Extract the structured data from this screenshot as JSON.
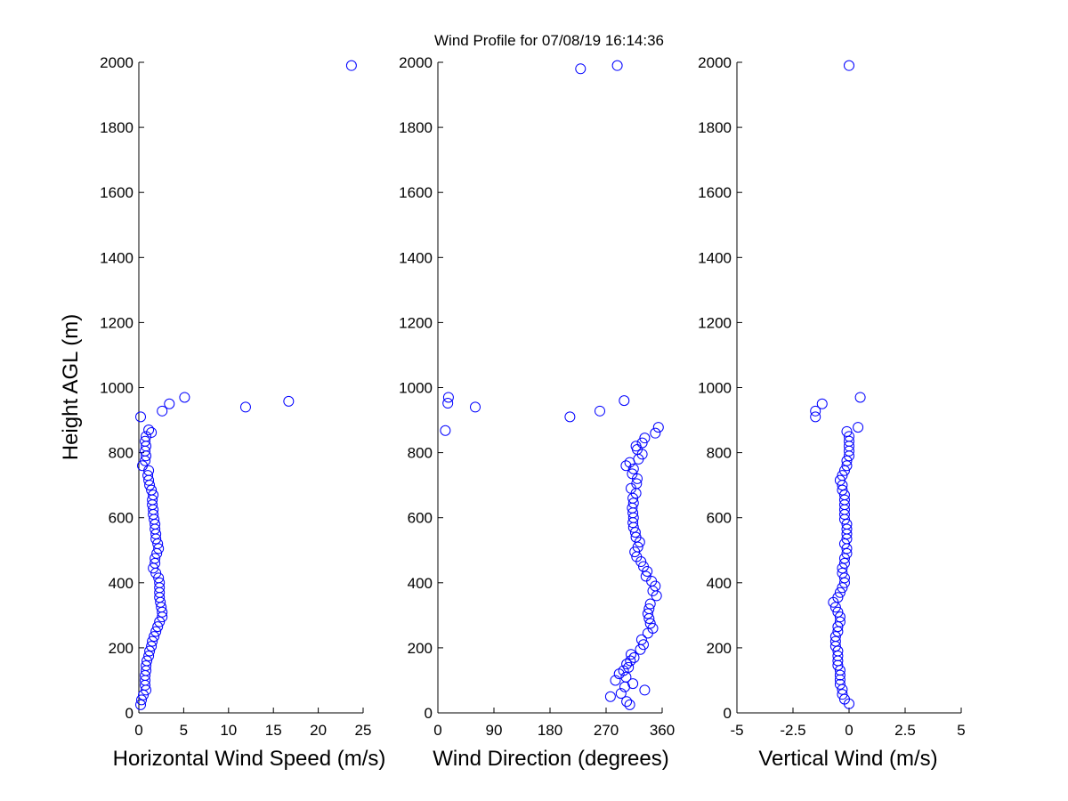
{
  "figure": {
    "title": "Wind Profile for  07/08/19 16:14:36",
    "ylabel": "Height AGL (m)",
    "marker_color": "#0000ff",
    "background": "#ffffff"
  },
  "chart_data": [
    {
      "type": "scatter",
      "xlabel": "Horizontal Wind Speed (m/s)",
      "ylabel": "Height AGL (m)",
      "xlim": [
        0,
        25
      ],
      "ylim": [
        0,
        2000
      ],
      "xticks": [
        "0",
        "5",
        "10",
        "15",
        "20",
        "25"
      ],
      "xtick_values": [
        0,
        5,
        10,
        15,
        20,
        25
      ],
      "yticks": [
        "0",
        "200",
        "400",
        "600",
        "800",
        "1000",
        "1200",
        "1400",
        "1600",
        "1800",
        "2000"
      ],
      "ytick_values": [
        0,
        200,
        400,
        600,
        800,
        1000,
        1200,
        1400,
        1600,
        1800,
        2000
      ],
      "grid": false,
      "points": [
        [
          0.2,
          25
        ],
        [
          0.3,
          40
        ],
        [
          0.5,
          55
        ],
        [
          0.8,
          70
        ],
        [
          0.7,
          85
        ],
        [
          0.7,
          100
        ],
        [
          0.7,
          115
        ],
        [
          0.8,
          130
        ],
        [
          0.8,
          145
        ],
        [
          0.9,
          160
        ],
        [
          1.1,
          175
        ],
        [
          1.2,
          190
        ],
        [
          1.4,
          205
        ],
        [
          1.5,
          220
        ],
        [
          1.7,
          235
        ],
        [
          1.9,
          250
        ],
        [
          2.1,
          265
        ],
        [
          2.3,
          280
        ],
        [
          2.6,
          295
        ],
        [
          2.6,
          310
        ],
        [
          2.5,
          325
        ],
        [
          2.4,
          340
        ],
        [
          2.3,
          355
        ],
        [
          2.3,
          370
        ],
        [
          2.3,
          385
        ],
        [
          2.3,
          400
        ],
        [
          2.2,
          415
        ],
        [
          1.9,
          430
        ],
        [
          1.6,
          445
        ],
        [
          1.8,
          460
        ],
        [
          1.8,
          475
        ],
        [
          2.0,
          490
        ],
        [
          2.2,
          505
        ],
        [
          2.1,
          520
        ],
        [
          1.9,
          535
        ],
        [
          1.9,
          550
        ],
        [
          1.8,
          565
        ],
        [
          1.8,
          580
        ],
        [
          1.7,
          595
        ],
        [
          1.6,
          610
        ],
        [
          1.6,
          625
        ],
        [
          1.5,
          640
        ],
        [
          1.5,
          655
        ],
        [
          1.6,
          670
        ],
        [
          1.4,
          685
        ],
        [
          1.2,
          700
        ],
        [
          1.1,
          715
        ],
        [
          1.0,
          730
        ],
        [
          1.1,
          745
        ],
        [
          0.4,
          760
        ],
        [
          0.7,
          775
        ],
        [
          0.8,
          790
        ],
        [
          0.7,
          805
        ],
        [
          0.8,
          820
        ],
        [
          0.7,
          835
        ],
        [
          0.8,
          850
        ],
        [
          1.4,
          862
        ],
        [
          1.1,
          870
        ],
        [
          0.2,
          910
        ],
        [
          2.6,
          928
        ],
        [
          11.9,
          940
        ],
        [
          3.4,
          950
        ],
        [
          16.7,
          958
        ],
        [
          5.1,
          970
        ],
        [
          23.7,
          1990
        ]
      ]
    },
    {
      "type": "scatter",
      "xlabel": "Wind Direction (degrees)",
      "ylabel": "",
      "xlim": [
        0,
        360
      ],
      "ylim": [
        0,
        2000
      ],
      "xticks": [
        "0",
        "90",
        "180",
        "270",
        "360"
      ],
      "xtick_values": [
        0,
        90,
        180,
        270,
        360
      ],
      "yticks": [
        "0",
        "200",
        "400",
        "600",
        "800",
        "1000",
        "1200",
        "1400",
        "1600",
        "1800",
        "2000"
      ],
      "ytick_values": [
        0,
        200,
        400,
        600,
        800,
        1000,
        1200,
        1400,
        1600,
        1800,
        2000
      ],
      "grid": false,
      "points": [
        [
          308,
          25
        ],
        [
          303,
          35
        ],
        [
          277,
          50
        ],
        [
          294,
          60
        ],
        [
          332,
          70
        ],
        [
          300,
          80
        ],
        [
          313,
          90
        ],
        [
          285,
          100
        ],
        [
          302,
          110
        ],
        [
          291,
          120
        ],
        [
          298,
          130
        ],
        [
          306,
          140
        ],
        [
          303,
          150
        ],
        [
          309,
          160
        ],
        [
          315,
          170
        ],
        [
          310,
          180
        ],
        [
          325,
          195
        ],
        [
          330,
          210
        ],
        [
          327,
          225
        ],
        [
          337,
          245
        ],
        [
          345,
          260
        ],
        [
          341,
          275
        ],
        [
          339,
          290
        ],
        [
          337,
          305
        ],
        [
          339,
          320
        ],
        [
          341,
          335
        ],
        [
          351,
          360
        ],
        [
          345,
          375
        ],
        [
          349,
          390
        ],
        [
          343,
          405
        ],
        [
          334,
          420
        ],
        [
          336,
          435
        ],
        [
          330,
          450
        ],
        [
          326,
          465
        ],
        [
          319,
          480
        ],
        [
          316,
          495
        ],
        [
          321,
          510
        ],
        [
          324,
          525
        ],
        [
          318,
          540
        ],
        [
          317,
          555
        ],
        [
          314,
          570
        ],
        [
          313,
          585
        ],
        [
          314,
          600
        ],
        [
          313,
          615
        ],
        [
          312,
          630
        ],
        [
          314,
          645
        ],
        [
          313,
          660
        ],
        [
          318,
          675
        ],
        [
          310,
          690
        ],
        [
          319,
          705
        ],
        [
          320,
          720
        ],
        [
          312,
          735
        ],
        [
          314,
          750
        ],
        [
          302,
          760
        ],
        [
          308,
          770
        ],
        [
          322,
          780
        ],
        [
          328,
          795
        ],
        [
          320,
          810
        ],
        [
          318,
          820
        ],
        [
          328,
          830
        ],
        [
          332,
          845
        ],
        [
          349,
          860
        ],
        [
          354,
          878
        ],
        [
          12,
          868
        ],
        [
          212,
          910
        ],
        [
          260,
          928
        ],
        [
          60,
          940
        ],
        [
          16,
          952
        ],
        [
          299,
          960
        ],
        [
          17,
          970
        ],
        [
          229,
          1980
        ],
        [
          288,
          1990
        ]
      ]
    },
    {
      "type": "scatter",
      "xlabel": "Vertical Wind (m/s)",
      "ylabel": "",
      "xlim": [
        -5,
        5
      ],
      "ylim": [
        0,
        2000
      ],
      "xticks": [
        "-5",
        "-2.5",
        "0",
        "2.5",
        "5"
      ],
      "xtick_values": [
        -5,
        -2.5,
        0,
        2.5,
        5
      ],
      "yticks": [
        "0",
        "200",
        "400",
        "600",
        "800",
        "1000",
        "1200",
        "1400",
        "1600",
        "1800",
        "2000"
      ],
      "ytick_values": [
        0,
        200,
        400,
        600,
        800,
        1000,
        1200,
        1400,
        1600,
        1800,
        2000
      ],
      "grid": false,
      "points": [
        [
          0.0,
          28
        ],
        [
          -0.2,
          42
        ],
        [
          -0.3,
          57
        ],
        [
          -0.3,
          72
        ],
        [
          -0.4,
          88
        ],
        [
          -0.4,
          102
        ],
        [
          -0.4,
          116
        ],
        [
          -0.4,
          131
        ],
        [
          -0.5,
          146
        ],
        [
          -0.5,
          160
        ],
        [
          -0.5,
          175
        ],
        [
          -0.5,
          190
        ],
        [
          -0.6,
          205
        ],
        [
          -0.6,
          220
        ],
        [
          -0.6,
          235
        ],
        [
          -0.5,
          250
        ],
        [
          -0.5,
          265
        ],
        [
          -0.4,
          280
        ],
        [
          -0.4,
          295
        ],
        [
          -0.5,
          310
        ],
        [
          -0.6,
          325
        ],
        [
          -0.7,
          340
        ],
        [
          -0.5,
          355
        ],
        [
          -0.4,
          370
        ],
        [
          -0.3,
          385
        ],
        [
          -0.2,
          400
        ],
        [
          -0.2,
          415
        ],
        [
          -0.3,
          430
        ],
        [
          -0.3,
          445
        ],
        [
          -0.2,
          460
        ],
        [
          -0.2,
          475
        ],
        [
          -0.1,
          490
        ],
        [
          -0.1,
          505
        ],
        [
          -0.2,
          520
        ],
        [
          -0.1,
          535
        ],
        [
          -0.1,
          550
        ],
        [
          -0.1,
          565
        ],
        [
          -0.1,
          580
        ],
        [
          -0.2,
          595
        ],
        [
          -0.2,
          610
        ],
        [
          -0.2,
          625
        ],
        [
          -0.2,
          640
        ],
        [
          -0.2,
          655
        ],
        [
          -0.2,
          670
        ],
        [
          -0.3,
          685
        ],
        [
          -0.3,
          700
        ],
        [
          -0.4,
          715
        ],
        [
          -0.3,
          730
        ],
        [
          -0.2,
          745
        ],
        [
          -0.1,
          760
        ],
        [
          -0.1,
          775
        ],
        [
          0.0,
          790
        ],
        [
          0.0,
          805
        ],
        [
          0.0,
          820
        ],
        [
          0.0,
          835
        ],
        [
          0.0,
          850
        ],
        [
          -0.1,
          865
        ],
        [
          0.4,
          878
        ],
        [
          -1.5,
          910
        ],
        [
          -1.5,
          928
        ],
        [
          -1.2,
          950
        ],
        [
          0.5,
          970
        ],
        [
          0.0,
          1990
        ]
      ]
    }
  ]
}
